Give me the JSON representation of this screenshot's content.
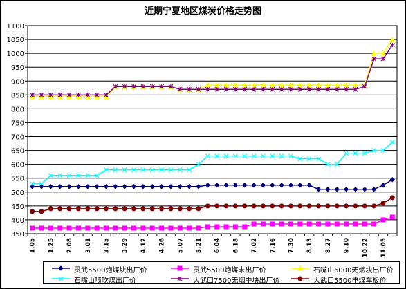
{
  "chart_data": {
    "type": "line",
    "title": "近期宁夏地区煤炭价格走势图",
    "xlabel": "",
    "ylabel": "",
    "ylim": [
      350,
      1100
    ],
    "y_ticks": [
      350,
      400,
      450,
      500,
      550,
      600,
      650,
      700,
      750,
      800,
      850,
      900,
      950,
      1000,
      1050,
      1100
    ],
    "grid": true,
    "legend_position": "bottom",
    "background": "#ffffff",
    "x_tick_labels": [
      "1.05",
      "1.25",
      "2.08",
      "3.01",
      "3.15",
      "3.29",
      "4.12",
      "4.26",
      "5.07",
      "5.21",
      "6.04",
      "6.18",
      "7.02",
      "7.16",
      "7.30",
      "8.13",
      "8.27",
      "9.10",
      "10.22",
      "11.05"
    ],
    "point_count": 40,
    "series": [
      {
        "name": "灵武5500炮煤块出厂价",
        "color": "#000080",
        "marker": "diamond",
        "values": [
          520,
          520,
          520,
          520,
          520,
          520,
          520,
          520,
          520,
          520,
          520,
          520,
          520,
          520,
          520,
          520,
          520,
          520,
          520,
          525,
          525,
          525,
          525,
          525,
          525,
          525,
          525,
          525,
          525,
          525,
          525,
          510,
          510,
          510,
          510,
          510,
          510,
          510,
          525,
          545
        ]
      },
      {
        "name": "灵武5500炮煤末出厂价",
        "color": "#ff00ff",
        "marker": "square",
        "values": [
          370,
          370,
          370,
          370,
          370,
          370,
          370,
          370,
          370,
          370,
          370,
          370,
          370,
          370,
          370,
          370,
          370,
          370,
          370,
          375,
          375,
          375,
          375,
          375,
          385,
          385,
          385,
          385,
          385,
          385,
          385,
          385,
          385,
          385,
          385,
          385,
          385,
          385,
          400,
          410
        ]
      },
      {
        "name": "石嘴山6000无烟块出厂价",
        "color": "#ffff00",
        "marker": "triangle",
        "values": [
          845,
          845,
          845,
          845,
          845,
          845,
          845,
          845,
          845,
          880,
          880,
          880,
          880,
          880,
          880,
          880,
          870,
          870,
          870,
          885,
          885,
          885,
          885,
          885,
          885,
          885,
          885,
          885,
          885,
          885,
          885,
          885,
          885,
          885,
          885,
          885,
          885,
          1000,
          1000,
          1050
        ]
      },
      {
        "name": "石嘴山喷吹煤出厂价",
        "color": "#00ffff",
        "marker": "x",
        "values": [
          530,
          530,
          560,
          560,
          560,
          560,
          560,
          560,
          580,
          580,
          580,
          580,
          580,
          580,
          580,
          580,
          580,
          580,
          600,
          630,
          630,
          630,
          630,
          630,
          630,
          630,
          630,
          630,
          630,
          620,
          620,
          620,
          600,
          600,
          640,
          640,
          640,
          650,
          650,
          680
        ]
      },
      {
        "name": "大武口7500无烟中块出厂价",
        "color": "#800080",
        "marker": "star",
        "values": [
          850,
          850,
          850,
          850,
          850,
          850,
          850,
          850,
          850,
          880,
          880,
          880,
          880,
          880,
          880,
          880,
          870,
          870,
          870,
          870,
          870,
          870,
          870,
          870,
          870,
          870,
          870,
          870,
          870,
          870,
          870,
          870,
          870,
          870,
          870,
          870,
          880,
          980,
          980,
          1030
        ]
      },
      {
        "name": "大武口5500电煤车板价",
        "color": "#800000",
        "marker": "circle",
        "values": [
          430,
          430,
          440,
          440,
          440,
          440,
          440,
          440,
          440,
          440,
          440,
          440,
          440,
          440,
          440,
          440,
          440,
          440,
          440,
          450,
          450,
          450,
          450,
          450,
          450,
          450,
          450,
          450,
          450,
          450,
          450,
          450,
          450,
          450,
          450,
          450,
          450,
          450,
          460,
          480
        ]
      }
    ]
  }
}
